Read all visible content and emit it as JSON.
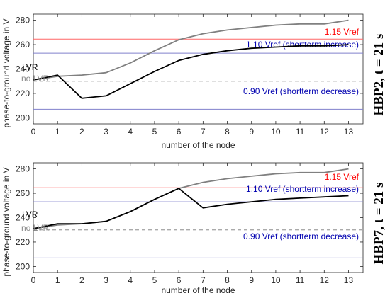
{
  "chart_data": [
    {
      "type": "line",
      "side_label": "HBP2, t = 21 s",
      "xlabel": "number of the node",
      "ylabel": "phase-to-ground voltage in V",
      "xlim": [
        0,
        13.6
      ],
      "ylim": [
        195,
        285
      ],
      "xticks": [
        0,
        1,
        2,
        3,
        4,
        5,
        6,
        7,
        8,
        9,
        10,
        11,
        12,
        13
      ],
      "yticks": [
        200,
        220,
        240,
        260,
        280
      ],
      "grid": false,
      "series": [
        {
          "name": "no LVR",
          "color": "#808080",
          "style": "solid",
          "x": [
            0,
            1,
            2,
            3,
            4,
            5,
            6,
            7,
            8,
            9,
            10,
            11,
            12,
            13
          ],
          "y": [
            231,
            234,
            235,
            237,
            245,
            255,
            264,
            269,
            272,
            274,
            276,
            277,
            277,
            280
          ]
        },
        {
          "name": "LVR",
          "color": "#000000",
          "style": "solid",
          "x": [
            0,
            1,
            2,
            3,
            4,
            5,
            6,
            7,
            8,
            9,
            10,
            11,
            12,
            13
          ],
          "y": [
            231,
            235,
            216,
            218,
            228,
            238,
            247,
            252,
            255,
            257,
            258,
            259,
            259,
            260
          ]
        }
      ],
      "reference_lines": [
        {
          "label": "1.15 Vref",
          "y": 264.5,
          "color": "#ff6666",
          "text_color": "#ff0000"
        },
        {
          "label": "1.10 Vref (shortterm increase)",
          "y": 253,
          "color": "#8080cc",
          "text_color": "#0000b0"
        },
        {
          "label": "",
          "y": 230,
          "color": "#aaaaaa",
          "text_color": "#aaaaaa",
          "dashed": true
        },
        {
          "label": "0.90 Vref (shortterm decrease)",
          "y": 207,
          "color": "#8080cc",
          "text_color": "#0000b0"
        }
      ],
      "line_labels": [
        {
          "text": "LVR",
          "color": "#000000"
        },
        {
          "text": "no LVR",
          "color": "#8a8a8a"
        }
      ]
    },
    {
      "type": "line",
      "side_label": "HBP7, t = 21 s",
      "xlabel": "number of the node",
      "ylabel": "phase-to-ground voltage in V",
      "xlim": [
        0,
        13.6
      ],
      "ylim": [
        195,
        285
      ],
      "xticks": [
        0,
        1,
        2,
        3,
        4,
        5,
        6,
        7,
        8,
        9,
        10,
        11,
        12,
        13
      ],
      "yticks": [
        200,
        220,
        240,
        260,
        280
      ],
      "grid": false,
      "series": [
        {
          "name": "no LVR",
          "color": "#808080",
          "style": "solid",
          "x": [
            0,
            1,
            2,
            3,
            4,
            5,
            6,
            7,
            8,
            9,
            10,
            11,
            12,
            13
          ],
          "y": [
            231,
            234,
            235,
            237,
            245,
            255,
            264,
            269,
            272,
            274,
            276,
            277,
            277,
            280
          ]
        },
        {
          "name": "LVR",
          "color": "#000000",
          "style": "solid",
          "x": [
            0,
            1,
            2,
            3,
            4,
            5,
            6,
            7,
            8,
            9,
            10,
            11,
            12,
            13
          ],
          "y": [
            231,
            235,
            235,
            237,
            245,
            255,
            264,
            248,
            251,
            253,
            255,
            256,
            257,
            258
          ]
        }
      ],
      "reference_lines": [
        {
          "label": "1.15 Vref",
          "y": 264.5,
          "color": "#ff6666",
          "text_color": "#ff0000"
        },
        {
          "label": "1.10 Vref (shortterm increase)",
          "y": 253,
          "color": "#8080cc",
          "text_color": "#0000b0"
        },
        {
          "label": "",
          "y": 230,
          "color": "#aaaaaa",
          "text_color": "#aaaaaa",
          "dashed": true
        },
        {
          "label": "0.90 Vref (shortterm decrease)",
          "y": 207,
          "color": "#8080cc",
          "text_color": "#0000b0"
        }
      ],
      "line_labels": [
        {
          "text": "LVR",
          "color": "#000000"
        },
        {
          "text": "no LVR",
          "color": "#8a8a8a"
        }
      ]
    }
  ]
}
